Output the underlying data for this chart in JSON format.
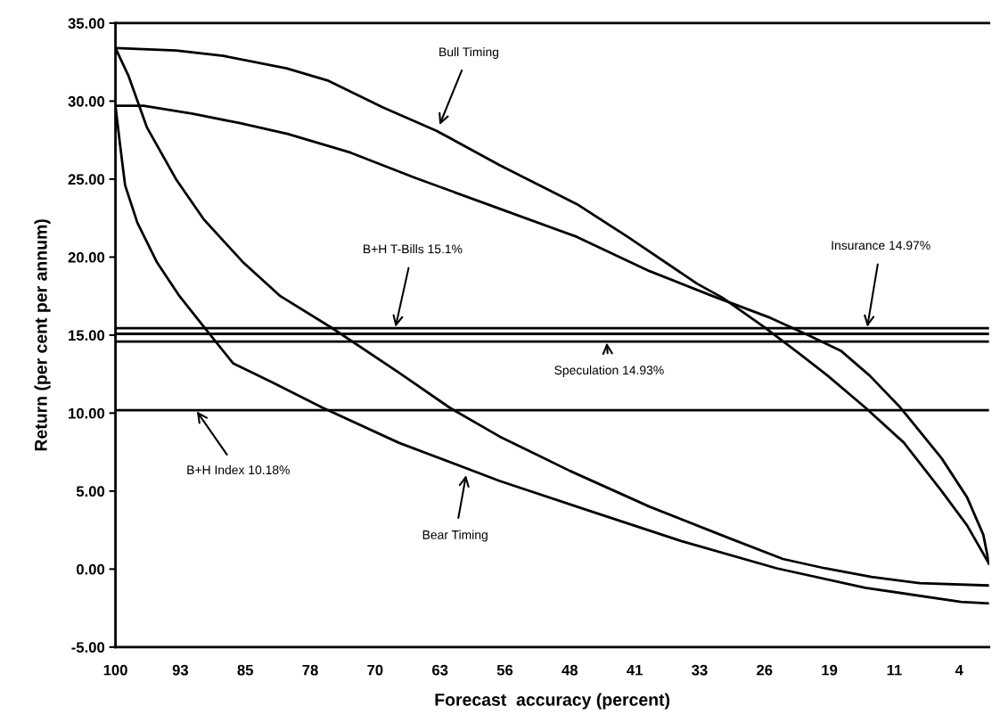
{
  "chart_data": {
    "type": "line",
    "xlabel": "Forecast  accuracy (percent)",
    "ylabel": "Return (per cent per annum)",
    "xlim": [
      100,
      0.4
    ],
    "ylim": [
      -5,
      35
    ],
    "xticks": [
      {
        "value": 100,
        "label": "100"
      },
      {
        "value": 92.6,
        "label": "93"
      },
      {
        "value": 85.2,
        "label": "85"
      },
      {
        "value": 77.8,
        "label": "78"
      },
      {
        "value": 70.4,
        "label": "70"
      },
      {
        "value": 63,
        "label": "63"
      },
      {
        "value": 55.6,
        "label": "56"
      },
      {
        "value": 48.2,
        "label": "48"
      },
      {
        "value": 40.8,
        "label": "41"
      },
      {
        "value": 33.4,
        "label": "33"
      },
      {
        "value": 26,
        "label": "26"
      },
      {
        "value": 18.6,
        "label": "19"
      },
      {
        "value": 11.2,
        "label": "11"
      },
      {
        "value": 3.8,
        "label": "4"
      }
    ],
    "yticks": [
      {
        "value": -5,
        "label": "-5.00"
      },
      {
        "value": 0,
        "label": "0.00"
      },
      {
        "value": 5,
        "label": "5.00"
      },
      {
        "value": 10,
        "label": "10.00"
      },
      {
        "value": 15,
        "label": "15.00"
      },
      {
        "value": 20,
        "label": "20.00"
      },
      {
        "value": 25,
        "label": "25.00"
      },
      {
        "value": 30,
        "label": "30.00"
      },
      {
        "value": 35,
        "label": "35.00"
      }
    ],
    "grid": false,
    "marker": "none",
    "line_style": "solid",
    "series": [
      {
        "color": "#000000",
        "x": [
          100,
          93.1,
          87.7,
          80.5,
          75.7,
          69.5,
          63.4,
          56.2,
          47.4,
          41.6,
          33.7,
          30.8,
          26,
          22,
          18.8,
          14.5,
          10.1,
          5.8,
          2.9,
          0.4
        ],
        "values": [
          33.4,
          33.25,
          32.9,
          32.1,
          31.3,
          29.6,
          28.1,
          25.9,
          23.4,
          21.3,
          18.3,
          17.4,
          15.5,
          13.8,
          12.4,
          10.35,
          8.1,
          5.0,
          2.8,
          0.35
        ]
      },
      {
        "color": "#000000",
        "x": [
          100,
          96.8,
          91.3,
          85.9,
          80.4,
          73.2,
          65.9,
          56.2,
          47.4,
          39.1,
          31.9,
          25.3,
          21,
          17.3,
          14,
          10.5,
          5.8,
          2.9,
          1.05,
          0.4
        ],
        "values": [
          29.7,
          29.7,
          29.2,
          28.6,
          27.9,
          26.7,
          25.1,
          23.1,
          21.3,
          19.1,
          17.5,
          16.1,
          15.0,
          14.0,
          12.4,
          10.35,
          7.1,
          4.6,
          2.2,
          0.35
        ]
      },
      {
        "color": "#000000",
        "x": [
          100,
          98.5,
          96.4,
          93.1,
          89.9,
          85.5,
          81.2,
          75.3,
          67.7,
          61.9,
          56.2,
          48.2,
          39.1,
          30.1,
          23.9,
          19.1,
          13.8,
          8.3,
          0.4
        ],
        "values": [
          33.4,
          31.6,
          28.3,
          25.0,
          22.4,
          19.7,
          17.5,
          15.45,
          12.6,
          10.35,
          8.5,
          6.3,
          4.0,
          2.0,
          0.65,
          0.05,
          -0.5,
          -0.9,
          -1.05
        ]
      },
      {
        "color": "#000000",
        "x": [
          100,
          99.5,
          98.9,
          97.5,
          95.3,
          92.7,
          89.8,
          86.6,
          82.2,
          76.4,
          67.7,
          56.2,
          46.3,
          35.5,
          24.6,
          14.5,
          3.6,
          0.4
        ],
        "values": [
          29.7,
          27.3,
          24.6,
          22.2,
          19.7,
          17.5,
          15.45,
          13.2,
          12.0,
          10.35,
          8.1,
          5.65,
          3.8,
          1.8,
          0.05,
          -1.2,
          -2.1,
          -2.2
        ]
      }
    ],
    "ref_lines": [
      {
        "axis": "y",
        "value": 15.45,
        "color": "#000000"
      },
      {
        "axis": "y",
        "value": 15.08,
        "color": "#000000"
      },
      {
        "axis": "y",
        "value": 14.59,
        "color": "#000000"
      },
      {
        "axis": "y",
        "value": 10.18,
        "color": "#000000"
      }
    ],
    "annotations": [
      {
        "text": "Bull Timing",
        "x": 63.1,
        "y": 28.4
      },
      {
        "text": "B+H T-Bills 15.1%",
        "x": 68.1,
        "y": 15.45
      },
      {
        "text": "Insurance 14.97%",
        "x": 14.3,
        "y": 15.45
      },
      {
        "text": "Speculation 14.93%",
        "x": 44.0,
        "y": 14.59
      },
      {
        "text": "B+H Index 10.18%",
        "x": 90.8,
        "y": 10.18
      },
      {
        "text": "Bear Timing",
        "x": 60.0,
        "y": 6.1
      }
    ]
  }
}
